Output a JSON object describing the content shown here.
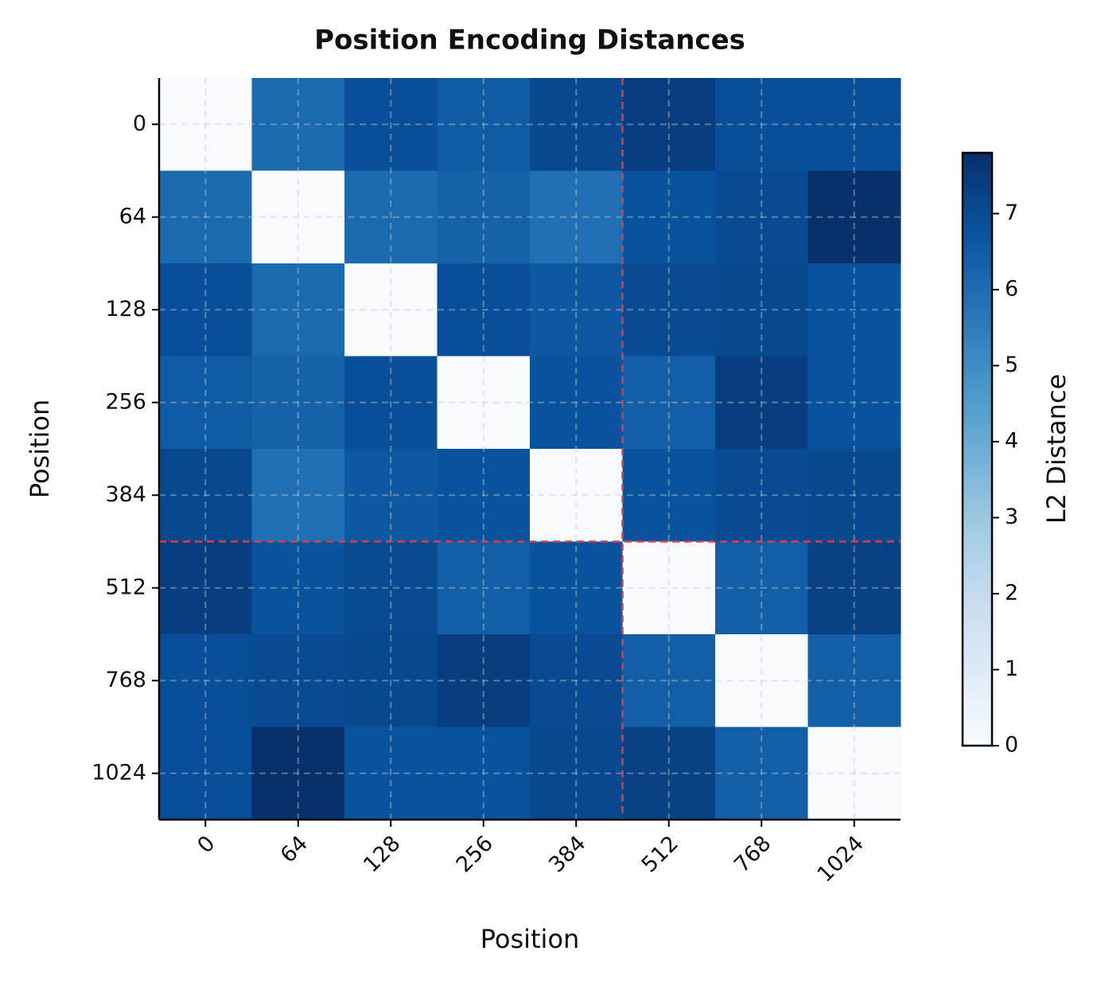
{
  "chart_data": {
    "type": "heatmap",
    "title": "Position Encoding Distances",
    "x_label": "Position",
    "y_label": "Position",
    "categories": [
      "0",
      "64",
      "128",
      "256",
      "384",
      "512",
      "768",
      "1024"
    ],
    "values": [
      [
        0,
        6.1,
        6.9,
        6.5,
        7.1,
        7.4,
        6.9,
        6.9
      ],
      [
        6.1,
        0,
        6.1,
        6.3,
        5.9,
        6.8,
        7.0,
        7.8
      ],
      [
        6.9,
        6.1,
        0,
        6.9,
        6.6,
        7.0,
        7.1,
        6.8
      ],
      [
        6.5,
        6.3,
        6.9,
        0,
        6.8,
        6.4,
        7.4,
        6.8
      ],
      [
        7.1,
        5.9,
        6.6,
        6.8,
        0,
        6.8,
        7.0,
        7.1
      ],
      [
        7.4,
        6.8,
        7.0,
        6.4,
        6.8,
        0,
        6.4,
        7.3
      ],
      [
        6.9,
        7.0,
        7.1,
        7.4,
        7.0,
        6.4,
        0,
        6.4
      ],
      [
        6.9,
        7.8,
        6.8,
        6.8,
        7.1,
        7.3,
        6.4,
        0
      ]
    ],
    "colormap": "Blues",
    "clim": [
      0,
      7.8
    ],
    "colorbar_ticks": [
      0,
      1,
      2,
      3,
      4,
      5,
      6,
      7
    ],
    "colorbar_label": "L2 Distance",
    "grid": true
  }
}
